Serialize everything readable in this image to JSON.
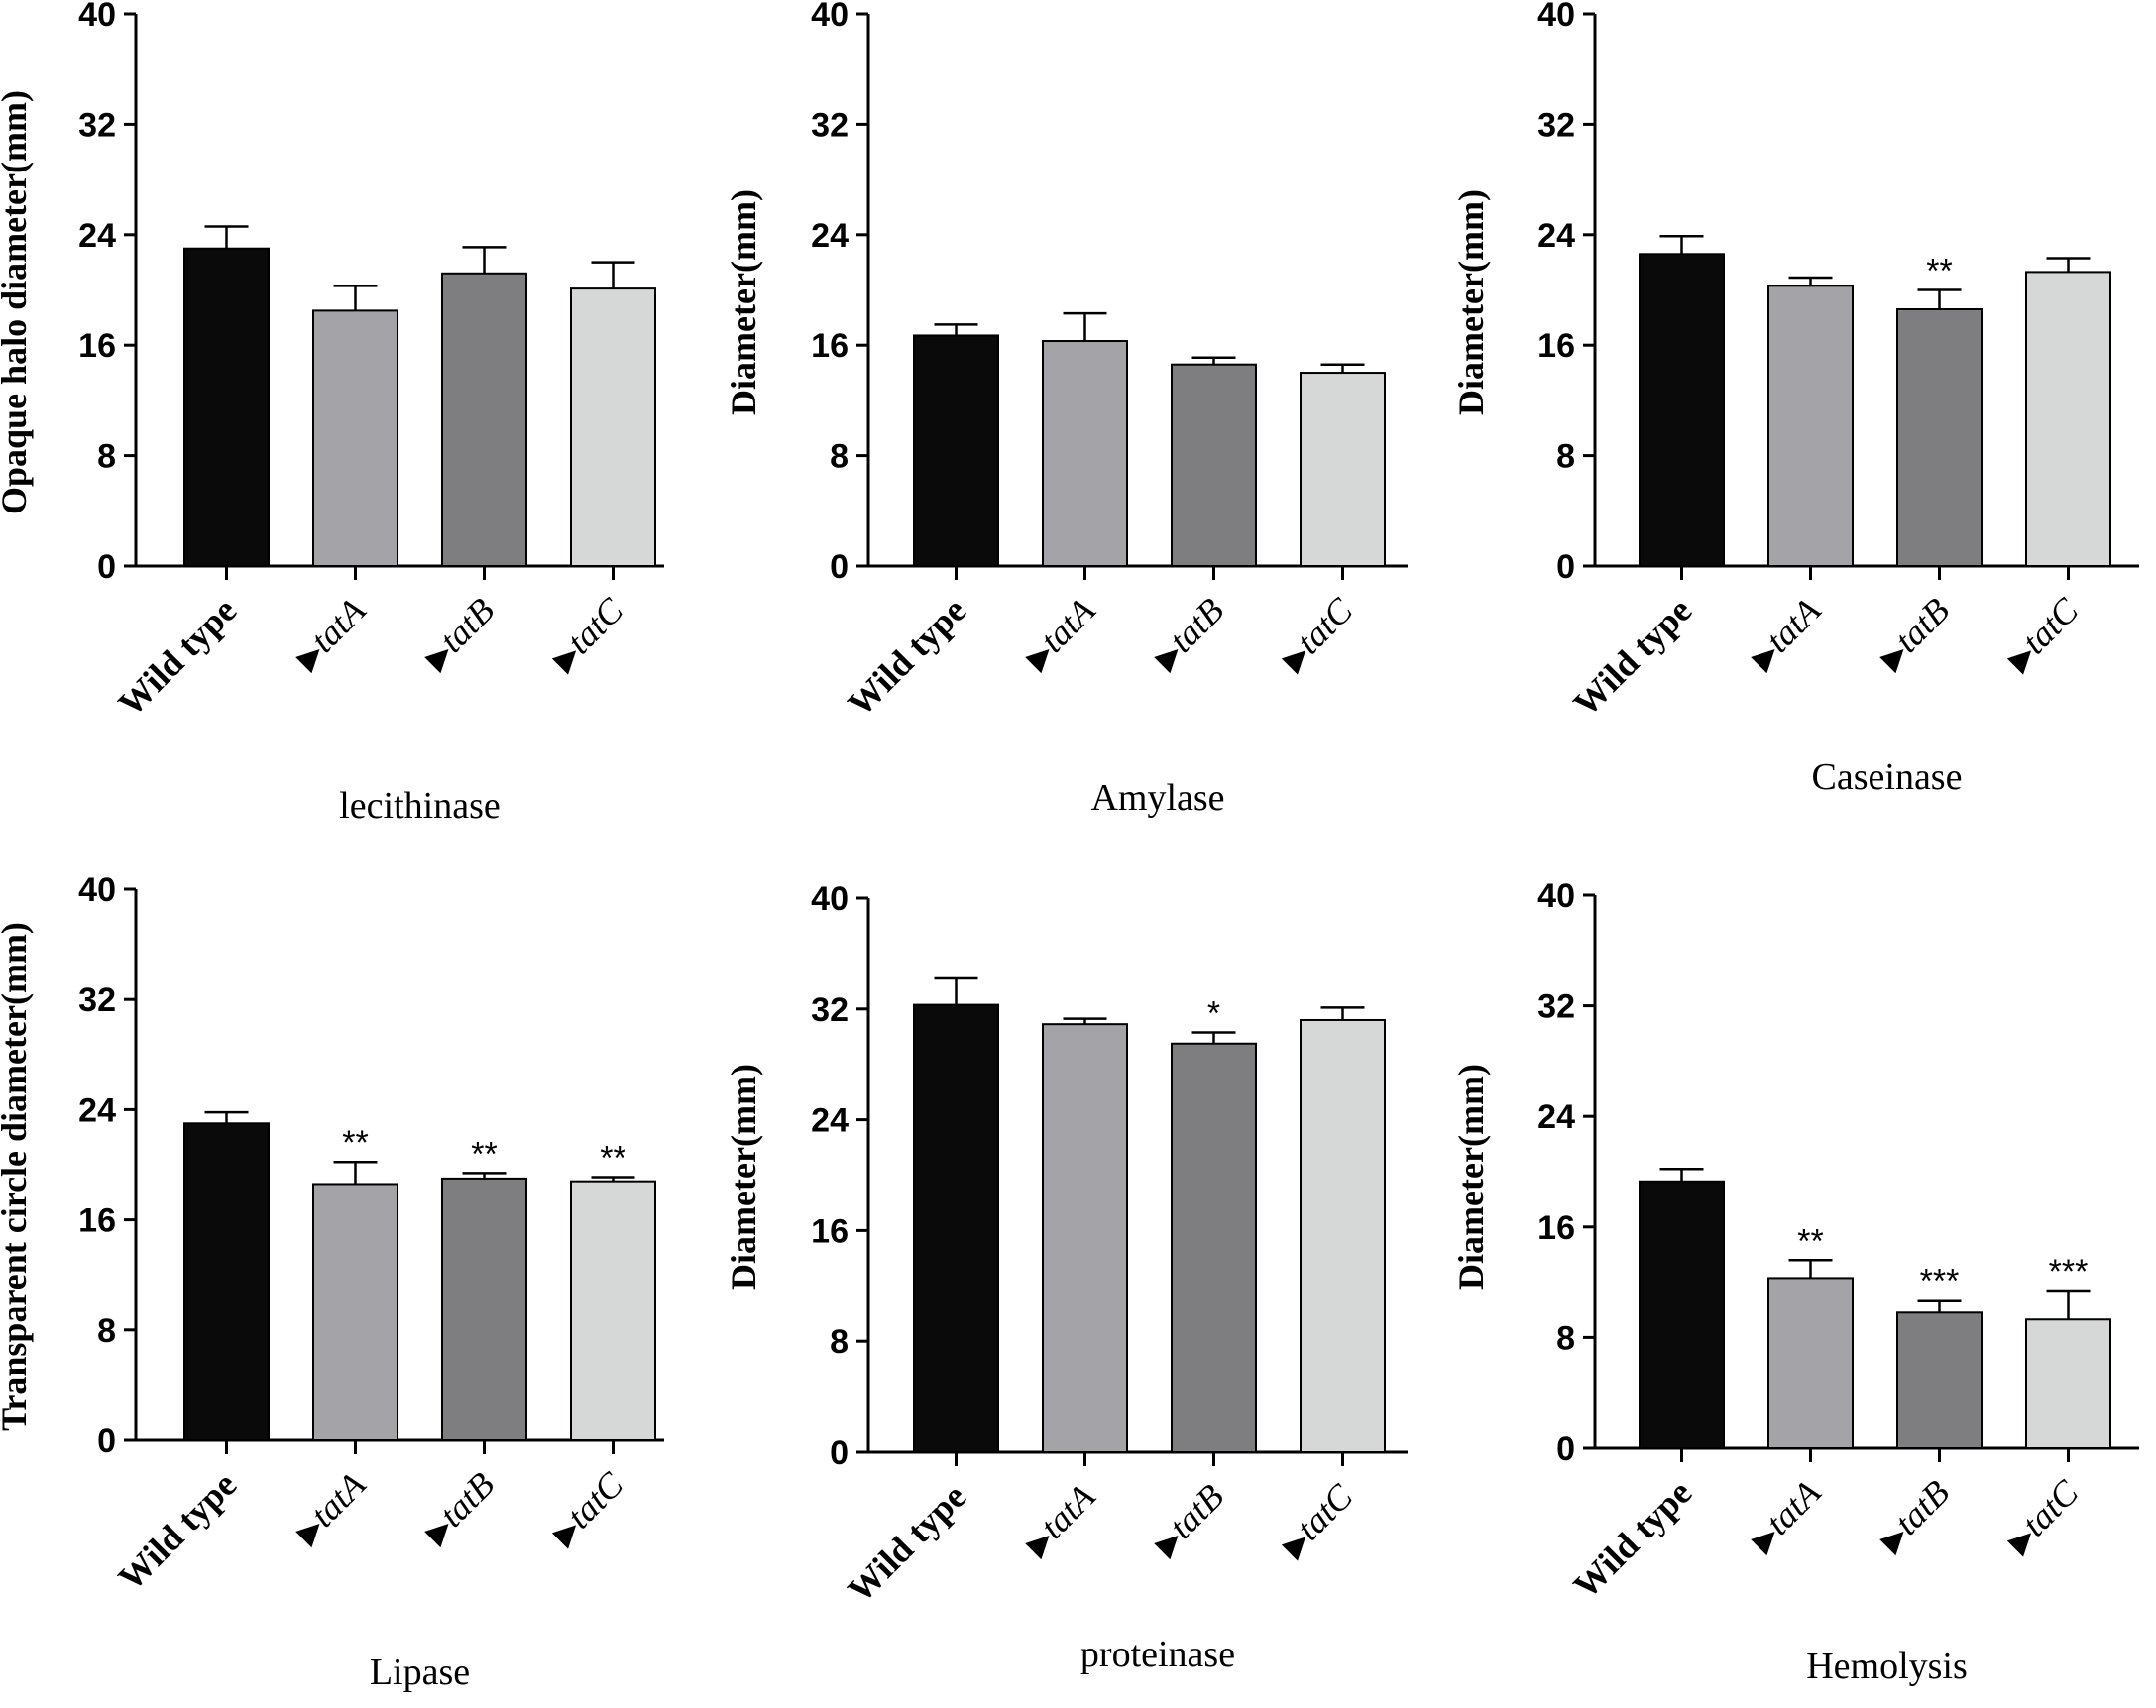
{
  "figure": {
    "category_labels": [
      {
        "prefix": "",
        "text": "Wild type",
        "italic": false,
        "bold": true
      },
      {
        "prefix": "▶",
        "text": "tatA",
        "italic": true,
        "bold": false
      },
      {
        "prefix": "▶",
        "text": "tatB",
        "italic": true,
        "bold": false
      },
      {
        "prefix": "▶",
        "text": "tatC",
        "italic": true,
        "bold": false
      }
    ],
    "bar_colors": [
      "#0a0a0a",
      "#a3a3a8",
      "#7e7e80",
      "#d6d7d7"
    ]
  },
  "chart_data": [
    {
      "type": "bar",
      "title": "lecithinase",
      "ylabel": "Opaque halo diameter(mm)",
      "categories": [
        "Wild type",
        "▶tatA",
        "▶tatB",
        "▶tatC"
      ],
      "values": [
        23.0,
        18.5,
        21.2,
        20.1
      ],
      "errors": [
        1.6,
        1.8,
        1.9,
        1.9
      ],
      "significance": [
        "",
        "",
        "",
        ""
      ],
      "ylim": [
        0,
        40
      ],
      "yticks": [
        0,
        8,
        16,
        24,
        32,
        40
      ],
      "ytick_labels": [
        "0",
        "8",
        "16",
        "24",
        "32",
        "40"
      ]
    },
    {
      "type": "bar",
      "title": "Amylase",
      "ylabel": "Diameter(mm)",
      "categories": [
        "Wild type",
        "▶tatA",
        "▶tatB",
        "▶tatC"
      ],
      "values": [
        16.7,
        16.3,
        14.6,
        14.0
      ],
      "errors": [
        0.8,
        2.0,
        0.5,
        0.6
      ],
      "significance": [
        "",
        "",
        "",
        ""
      ],
      "ylim": [
        0,
        40
      ],
      "yticks": [
        0,
        8,
        16,
        24,
        32,
        40
      ],
      "ytick_labels": [
        "0",
        "8",
        "16",
        "24",
        "32",
        "40"
      ]
    },
    {
      "type": "bar",
      "title": "Caseinase",
      "ylabel": "Diameter(mm)",
      "categories": [
        "Wild type",
        "▶tatA",
        "▶tatB",
        "▶tatC"
      ],
      "values": [
        22.6,
        20.3,
        18.6,
        21.3
      ],
      "errors": [
        1.3,
        0.6,
        1.4,
        1.0
      ],
      "significance": [
        "",
        "",
        "**",
        ""
      ],
      "ylim": [
        0,
        40
      ],
      "yticks": [
        0,
        8,
        16,
        24,
        32,
        40
      ],
      "ytick_labels": [
        "0",
        "8",
        "16",
        "24",
        "32",
        "40"
      ]
    },
    {
      "type": "bar",
      "title": "Lipase",
      "ylabel": "Transparent circle diameter(mm)",
      "categories": [
        "Wild type",
        "▶tatA",
        "▶tatB",
        "▶tatC"
      ],
      "values": [
        23.0,
        18.6,
        19.0,
        18.8
      ],
      "errors": [
        0.8,
        1.6,
        0.4,
        0.3
      ],
      "significance": [
        "",
        "**",
        "**",
        "**"
      ],
      "ylim": [
        0,
        40
      ],
      "yticks": [
        0,
        8,
        16,
        24,
        32,
        40
      ],
      "ytick_labels": [
        "0",
        "8",
        "16",
        "24",
        "32",
        "40"
      ]
    },
    {
      "type": "bar",
      "title": "proteinase",
      "ylabel": "Diameter(mm)",
      "categories": [
        "Wild type",
        "▶tatA",
        "▶tatB",
        "▶tatC"
      ],
      "values": [
        32.3,
        30.9,
        29.5,
        31.2
      ],
      "errors": [
        1.9,
        0.4,
        0.8,
        0.9
      ],
      "significance": [
        "",
        "",
        "*",
        ""
      ],
      "ylim": [
        0,
        40
      ],
      "yticks": [
        0,
        8,
        16,
        24,
        32,
        40
      ],
      "ytick_labels": [
        "0",
        "8",
        "16",
        "24",
        "32",
        "40"
      ]
    },
    {
      "type": "bar",
      "title": "Hemolysis",
      "ylabel": "Diameter(mm)",
      "categories": [
        "Wild type",
        "▶tatA",
        "▶tatB",
        "▶tatC"
      ],
      "values": [
        19.3,
        12.3,
        9.8,
        9.3
      ],
      "errors": [
        0.9,
        1.3,
        0.9,
        2.1
      ],
      "significance": [
        "",
        "**",
        "***",
        "***"
      ],
      "ylim": [
        0,
        40
      ],
      "yticks": [
        0,
        8,
        16,
        24,
        32,
        40
      ],
      "ytick_labels": [
        "0",
        "8",
        "16",
        "24",
        "32",
        "40"
      ]
    }
  ]
}
